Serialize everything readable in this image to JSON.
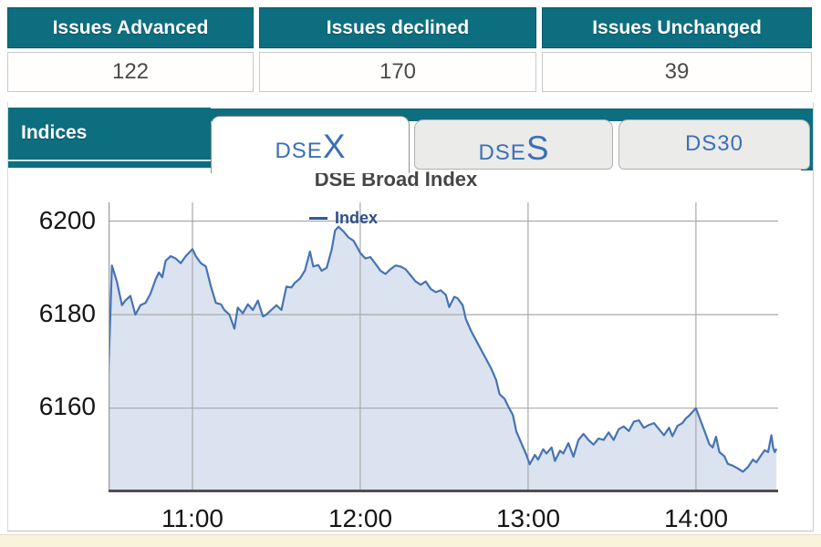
{
  "summary_table": {
    "columns": [
      {
        "header": "Issues Advanced",
        "value": "122"
      },
      {
        "header": "Issues declined",
        "value": "170"
      },
      {
        "header": "Issues Unchanged",
        "value": "39"
      }
    ]
  },
  "indices_panel": {
    "label": "Indices",
    "tabs": [
      {
        "label_prefix": "DSE",
        "label_suffix": "X",
        "active": true
      },
      {
        "label_prefix": "DSE",
        "label_suffix": "S",
        "active": false
      },
      {
        "label_prefix": "DS30",
        "label_suffix": "",
        "active": false
      }
    ]
  },
  "colors": {
    "teal": "#0d6e80",
    "tab_text_blue": "#3b6fba",
    "chart_line": "#4673b3",
    "chart_fill": "#dbe3f0",
    "gridline": "#a9a9a9",
    "footer_cream": "#faf3dc"
  },
  "chart_data": {
    "type": "area",
    "title": "DSE Broad Index",
    "legend": [
      "Index"
    ],
    "xlabel": "",
    "ylabel": "",
    "x_ticks": [
      "11:00",
      "12:00",
      "13:00",
      "14:00"
    ],
    "grid_hours": [
      11,
      12,
      13,
      14
    ],
    "y_ticks": [
      6200,
      6180,
      6160
    ],
    "x_range_hours": [
      10.5,
      14.49
    ],
    "ylim": [
      6142,
      6204
    ],
    "grid": true,
    "legend_position": "top-center",
    "series": [
      {
        "name": "Index",
        "points": [
          [
            10.5,
            6168
          ],
          [
            10.52,
            6190.5
          ],
          [
            10.55,
            6187
          ],
          [
            10.58,
            6182
          ],
          [
            10.6,
            6183
          ],
          [
            10.63,
            6184
          ],
          [
            10.66,
            6180
          ],
          [
            10.69,
            6182
          ],
          [
            10.72,
            6182.5
          ],
          [
            10.75,
            6184.5
          ],
          [
            10.78,
            6187.5
          ],
          [
            10.8,
            6189
          ],
          [
            10.82,
            6188
          ],
          [
            10.84,
            6191.5
          ],
          [
            10.87,
            6192.5
          ],
          [
            10.9,
            6192
          ],
          [
            10.93,
            6191
          ],
          [
            10.96,
            6192.5
          ],
          [
            11.0,
            6194
          ],
          [
            11.02,
            6192.5
          ],
          [
            11.05,
            6191
          ],
          [
            11.08,
            6190.3
          ],
          [
            11.11,
            6186
          ],
          [
            11.14,
            6182.5
          ],
          [
            11.17,
            6182.2
          ],
          [
            11.19,
            6181
          ],
          [
            11.22,
            6180
          ],
          [
            11.25,
            6177
          ],
          [
            11.27,
            6181.5
          ],
          [
            11.3,
            6180.3
          ],
          [
            11.33,
            6182.2
          ],
          [
            11.36,
            6181
          ],
          [
            11.39,
            6183
          ],
          [
            11.42,
            6179.6
          ],
          [
            11.44,
            6180
          ],
          [
            11.47,
            6181
          ],
          [
            11.5,
            6182
          ],
          [
            11.53,
            6181
          ],
          [
            11.56,
            6186
          ],
          [
            11.59,
            6185.8
          ],
          [
            11.61,
            6186.8
          ],
          [
            11.64,
            6187.7
          ],
          [
            11.67,
            6189.4
          ],
          [
            11.7,
            6193.5
          ],
          [
            11.72,
            6190.3
          ],
          [
            11.75,
            6190.6
          ],
          [
            11.77,
            6189.4
          ],
          [
            11.8,
            6190
          ],
          [
            11.83,
            6194
          ],
          [
            11.85,
            6198
          ],
          [
            11.87,
            6198.8
          ],
          [
            11.9,
            6197.8
          ],
          [
            11.93,
            6196.5
          ],
          [
            11.96,
            6195.8
          ],
          [
            11.98,
            6194.5
          ],
          [
            12.0,
            6193.2
          ],
          [
            12.03,
            6192
          ],
          [
            12.06,
            6192.3
          ],
          [
            12.09,
            6190.9
          ],
          [
            12.12,
            6189.4
          ],
          [
            12.15,
            6188.7
          ],
          [
            12.18,
            6189.7
          ],
          [
            12.21,
            6190.5
          ],
          [
            12.24,
            6190.3
          ],
          [
            12.27,
            6189.7
          ],
          [
            12.3,
            6188.4
          ],
          [
            12.33,
            6187.1
          ],
          [
            12.36,
            6186.4
          ],
          [
            12.39,
            6187.1
          ],
          [
            12.42,
            6185.5
          ],
          [
            12.45,
            6184.8
          ],
          [
            12.48,
            6185.2
          ],
          [
            12.51,
            6184.2
          ],
          [
            12.53,
            6181.6
          ],
          [
            12.56,
            6183.8
          ],
          [
            12.58,
            6183.5
          ],
          [
            12.61,
            6182
          ],
          [
            12.63,
            6179
          ],
          [
            12.66,
            6176.5
          ],
          [
            12.69,
            6174.5
          ],
          [
            12.72,
            6172.5
          ],
          [
            12.75,
            6170.5
          ],
          [
            12.78,
            6168.5
          ],
          [
            12.81,
            6166
          ],
          [
            12.83,
            6163
          ],
          [
            12.86,
            6162
          ],
          [
            12.88,
            6160.5
          ],
          [
            12.91,
            6158.5
          ],
          [
            12.93,
            6155
          ],
          [
            12.96,
            6152.5
          ],
          [
            12.99,
            6150
          ],
          [
            13.01,
            6148
          ],
          [
            13.04,
            6150
          ],
          [
            13.06,
            6149
          ],
          [
            13.09,
            6151.2
          ],
          [
            13.11,
            6150.3
          ],
          [
            13.14,
            6151.6
          ],
          [
            13.16,
            6148.7
          ],
          [
            13.19,
            6150.9
          ],
          [
            13.21,
            6150.3
          ],
          [
            13.24,
            6152.5
          ],
          [
            13.27,
            6149.6
          ],
          [
            13.3,
            6153.2
          ],
          [
            13.33,
            6154.5
          ],
          [
            13.36,
            6153.2
          ],
          [
            13.39,
            6152.2
          ],
          [
            13.42,
            6153.5
          ],
          [
            13.45,
            6153.2
          ],
          [
            13.48,
            6154.8
          ],
          [
            13.51,
            6153.2
          ],
          [
            13.54,
            6155.5
          ],
          [
            13.57,
            6156.1
          ],
          [
            13.6,
            6155.1
          ],
          [
            13.63,
            6157.1
          ],
          [
            13.66,
            6157.4
          ],
          [
            13.69,
            6155.8
          ],
          [
            13.72,
            6156.4
          ],
          [
            13.75,
            6156.8
          ],
          [
            13.78,
            6155.5
          ],
          [
            13.81,
            6154.2
          ],
          [
            13.84,
            6155.8
          ],
          [
            13.86,
            6154
          ],
          [
            13.89,
            6156.2
          ],
          [
            13.92,
            6156.8
          ],
          [
            13.94,
            6157.8
          ],
          [
            13.96,
            6158.4
          ],
          [
            14.0,
            6160
          ],
          [
            14.02,
            6158.1
          ],
          [
            14.05,
            6155.2
          ],
          [
            14.08,
            6152.3
          ],
          [
            14.1,
            6151.6
          ],
          [
            14.12,
            6153.9
          ],
          [
            14.14,
            6150.6
          ],
          [
            14.17,
            6149.7
          ],
          [
            14.19,
            6148.1
          ],
          [
            14.22,
            6147.7
          ],
          [
            14.25,
            6147.1
          ],
          [
            14.28,
            6146.4
          ],
          [
            14.31,
            6147.4
          ],
          [
            14.34,
            6149.0
          ],
          [
            14.36,
            6148.4
          ],
          [
            14.39,
            6150.0
          ],
          [
            14.41,
            6151.0
          ],
          [
            14.43,
            6150.6
          ],
          [
            14.45,
            6154.2
          ],
          [
            14.46,
            6151.6
          ],
          [
            14.47,
            6150.6
          ],
          [
            14.48,
            6151.3
          ]
        ]
      }
    ]
  }
}
